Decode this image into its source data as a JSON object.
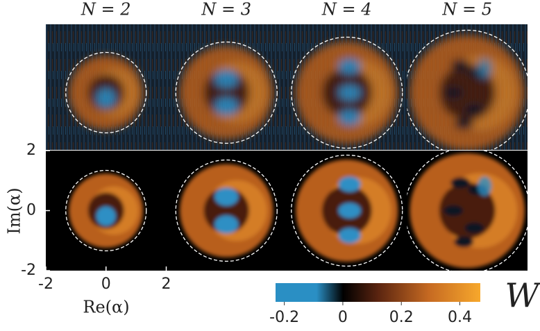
{
  "chart_data": {
    "type": "wigner-grid",
    "panels": [
      "N = 2",
      "N = 3",
      "N = 4",
      "N = 5"
    ],
    "xlabel": "Re(α)",
    "ylabel": "Im(α)",
    "xlim": [
      -2,
      2
    ],
    "ylim": [
      -2,
      2
    ],
    "xticks": [
      -2,
      0,
      2
    ],
    "yticks": [
      -2,
      0,
      2
    ],
    "colorbar": {
      "label": "W",
      "clim": [
        -0.23,
        0.47
      ],
      "ticks": [
        -0.2,
        0,
        0.2,
        0.4
      ]
    }
  }
}
